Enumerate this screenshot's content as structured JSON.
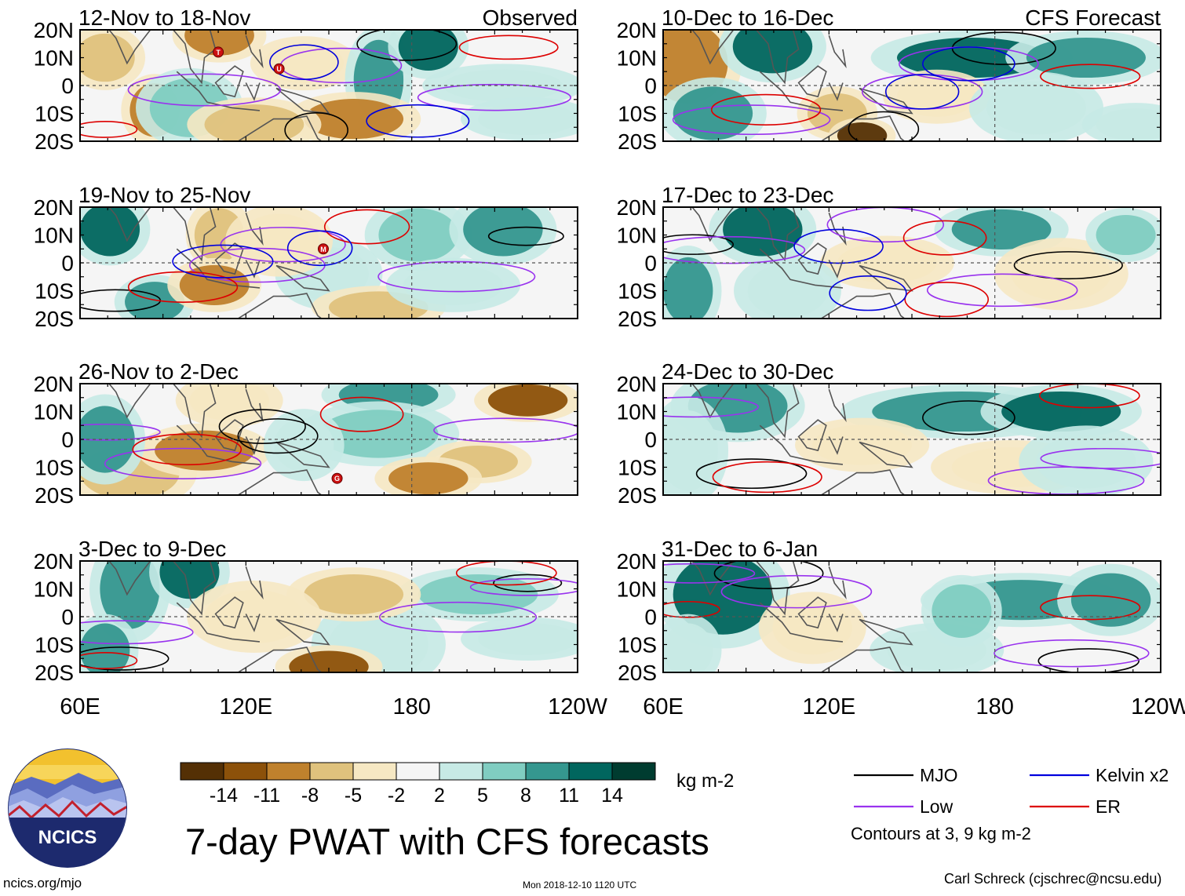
{
  "title": "7-day PWAT with CFS forecasts",
  "site": "ncics.org/mjo",
  "timestamp": "Mon 2018-12-10 1120 UTC",
  "credit": "Carl Schreck (cjschrec@ncsu.edu)",
  "logo_text": "NCICS",
  "column_labels": {
    "left": "Observed",
    "right": "CFS Forecast"
  },
  "y_ticks": [
    "20N",
    "10N",
    "0",
    "10S",
    "20S"
  ],
  "x_ticks": [
    "60E",
    "120E",
    "180",
    "120W"
  ],
  "panels": [
    {
      "period": "12-Nov to 18-Nov",
      "kind": "observed",
      "storms": [
        {
          "letter": "T",
          "lon": 110,
          "lat": 12
        },
        {
          "letter": "U",
          "lon": 132,
          "lat": 6
        }
      ]
    },
    {
      "period": "19-Nov to 25-Nov",
      "kind": "observed",
      "storms": [
        {
          "letter": "M",
          "lon": 148,
          "lat": 5
        }
      ]
    },
    {
      "period": "26-Nov to 2-Dec",
      "kind": "observed",
      "storms": [
        {
          "letter": "G",
          "lon": 153,
          "lat": -14
        }
      ]
    },
    {
      "period": "3-Dec to 9-Dec",
      "kind": "observed",
      "storms": []
    },
    {
      "period": "10-Dec to 16-Dec",
      "kind": "forecast",
      "storms": []
    },
    {
      "period": "17-Dec to 23-Dec",
      "kind": "forecast",
      "storms": []
    },
    {
      "period": "24-Dec to 30-Dec",
      "kind": "forecast",
      "storms": []
    },
    {
      "period": "31-Dec to 6-Jan",
      "kind": "forecast",
      "storms": []
    }
  ],
  "colorbar": {
    "colors": [
      "#543005",
      "#8c510a",
      "#bf812d",
      "#dfc27d",
      "#f6e8c3",
      "#f5f5f5",
      "#c7eae5",
      "#80cdc1",
      "#35978f",
      "#01665e",
      "#003c30"
    ],
    "ticks": [
      "-14",
      "-11",
      "-8",
      "-5",
      "-2",
      "2",
      "5",
      "8",
      "11",
      "14"
    ],
    "units": "kg m-2"
  },
  "legend": {
    "items": [
      {
        "label": "MJO",
        "color": "#000000"
      },
      {
        "label": "Kelvin x2",
        "color": "#0000dd"
      },
      {
        "label": "Low",
        "color": "#9933ee"
      },
      {
        "label": "ER",
        "color": "#dd0000"
      }
    ],
    "note": "Contours at 3, 9 kg m-2"
  }
}
